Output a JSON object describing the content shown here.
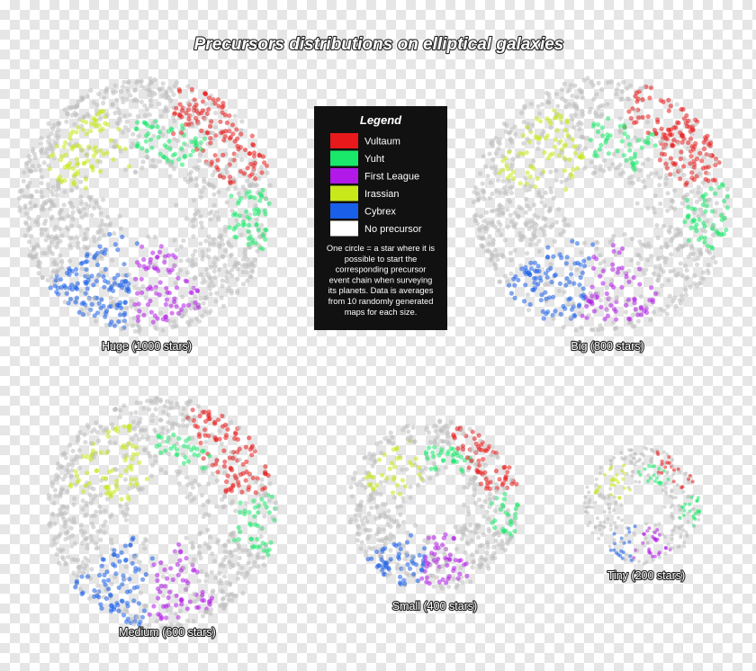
{
  "title": "Precursors distributions on elliptical galaxies",
  "legend": {
    "title": "Legend",
    "items": [
      {
        "label": "Vultaum",
        "color": "#e8191a"
      },
      {
        "label": "Yuht",
        "color": "#19e86a"
      },
      {
        "label": "First League",
        "color": "#b019e8"
      },
      {
        "label": "Irassian",
        "color": "#c9e819"
      },
      {
        "label": "Cybrex",
        "color": "#1a5fe8"
      },
      {
        "label": "No precursor",
        "color": "#ffffff"
      }
    ],
    "note": [
      "One circle = a star where it is",
      "possible to start the",
      "corresponding precursor",
      "event chain when surveying",
      "its planets. Data is averages",
      "from 10 randomly generated",
      "maps for each size."
    ]
  },
  "galaxies": [
    {
      "label": "Huge (1000 stars)"
    },
    {
      "label": "Big (800 stars)"
    },
    {
      "label": "Medium (600 stars)"
    },
    {
      "label": "Small (400 stars)"
    },
    {
      "label": "Tiny (200 stars)"
    }
  ]
}
